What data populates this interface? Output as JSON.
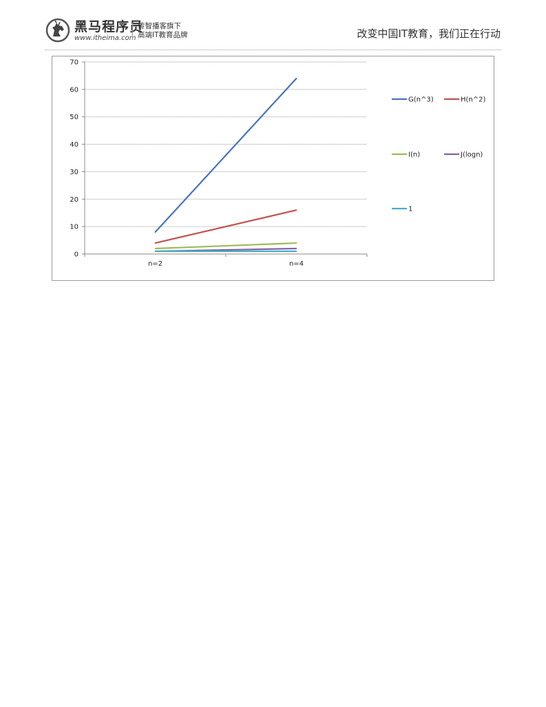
{
  "header": {
    "brand": "黑马程序员",
    "url": "www.itheima.com",
    "slogan_line1": "传智播客旗下",
    "slogan_line2": "高端IT教育品牌",
    "tagline": "改变中国IT教育，我们正在行动",
    "logo_icon": "horse-head-logo-icon"
  },
  "chart_data": {
    "type": "line",
    "categories": [
      "n=2",
      "n=4"
    ],
    "ylim": [
      0,
      70
    ],
    "yticks": [
      0,
      10,
      20,
      30,
      40,
      50,
      60,
      70
    ],
    "grid": true,
    "legend_placement": "right",
    "title": "",
    "xlabel": "",
    "ylabel": "",
    "series": [
      {
        "name": "G(n^3)",
        "values": [
          8,
          64
        ],
        "color": "#4472c4"
      },
      {
        "name": "H(n^2)",
        "values": [
          4,
          16
        ],
        "color": "#c0504d"
      },
      {
        "name": "I(n)",
        "values": [
          2,
          4
        ],
        "color": "#9bbb59"
      },
      {
        "name": "J(logn)",
        "values": [
          1,
          2
        ],
        "color": "#8064a2"
      },
      {
        "name": "1",
        "values": [
          1,
          1
        ],
        "color": "#4bacc6"
      }
    ]
  }
}
